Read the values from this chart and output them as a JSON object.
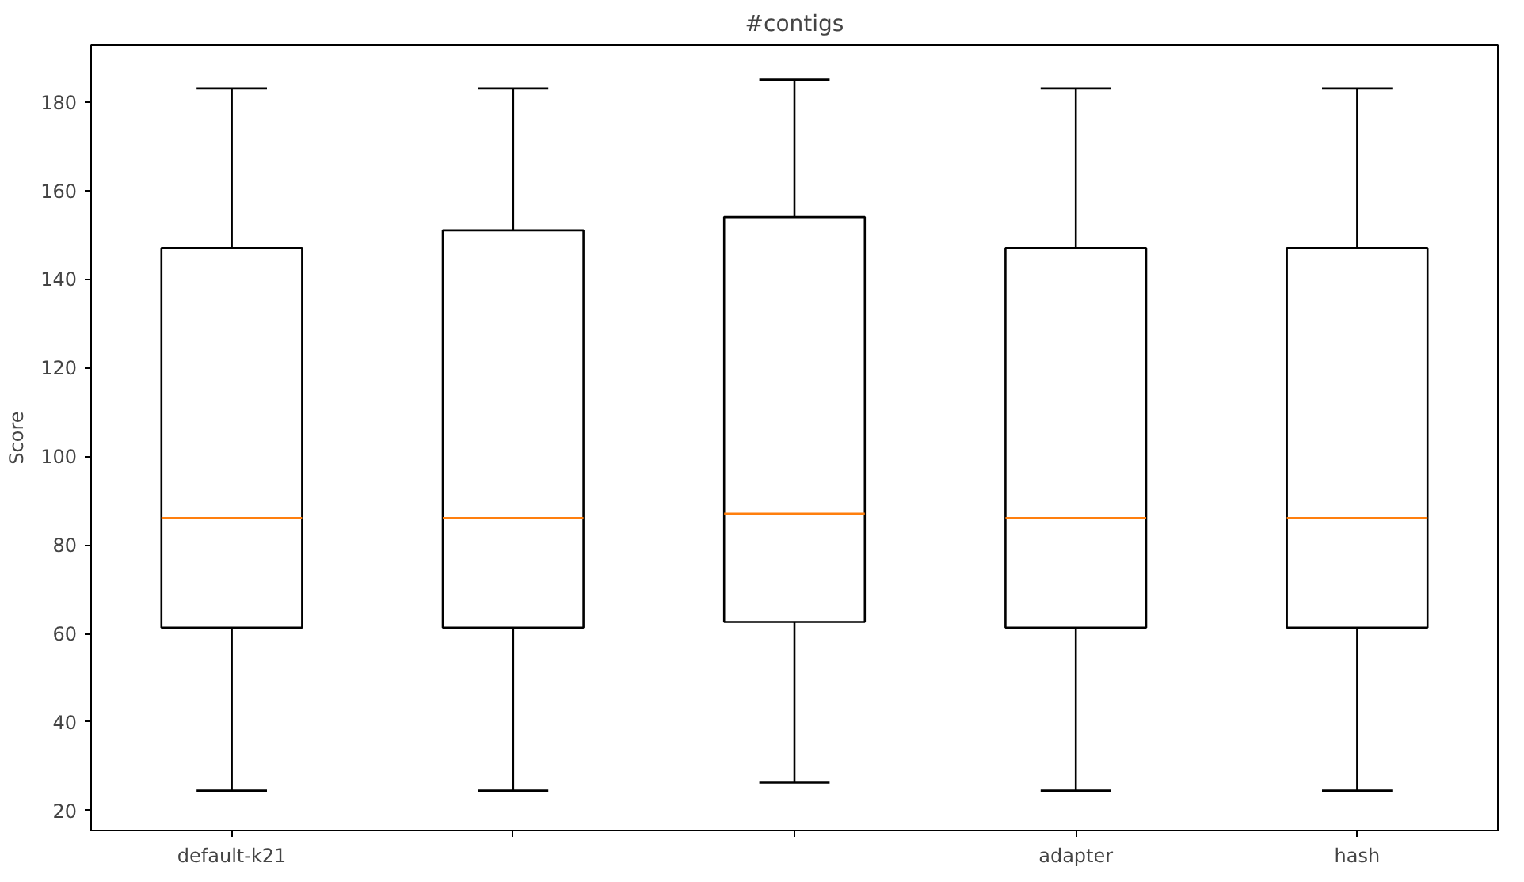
{
  "chart_data": {
    "type": "box",
    "title": "#contigs",
    "ylabel": "Score",
    "categories": [
      "default-k21",
      null,
      null,
      "adapter",
      "hash"
    ],
    "boxes": [
      {
        "low": 24.5,
        "q1": 61.3,
        "median": 86,
        "q3": 147,
        "high": 183
      },
      {
        "low": 24.5,
        "q1": 61.3,
        "median": 86,
        "q3": 151,
        "high": 183
      },
      {
        "low": 26.3,
        "q1": 62.6,
        "median": 87,
        "q3": 154,
        "high": 185
      },
      {
        "low": 24.5,
        "q1": 61.3,
        "median": 86,
        "q3": 147,
        "high": 183
      },
      {
        "low": 24.5,
        "q1": 61.3,
        "median": 86,
        "q3": 147,
        "high": 183
      }
    ],
    "color": "#000000",
    "ylim": [
      15.5,
      192.8
    ],
    "yticks": [
      20,
      40,
      60,
      80,
      100,
      120,
      140,
      160,
      180
    ],
    "grid": false
  }
}
